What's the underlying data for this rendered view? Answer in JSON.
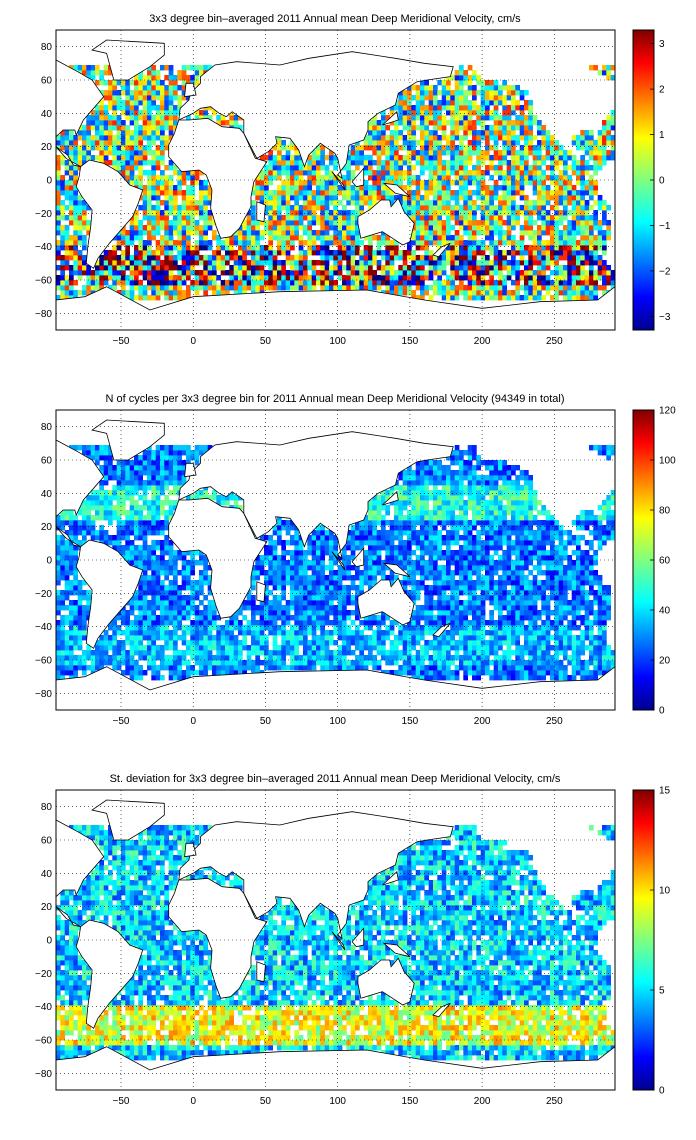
{
  "figure": {
    "panels": [
      {
        "id": "mean-velocity",
        "title": "3x3 degree bin–averaged 2011 Annual mean Deep Meridional Velocity, cm/s",
        "colorbar_ticks": [
          "3",
          "2",
          "1",
          "0",
          "−1",
          "−2",
          "−3"
        ]
      },
      {
        "id": "cycle-count",
        "title": "N of cycles per 3x3 degree bin for 2011 Annual mean Deep Meridional Velocity (94349 in total)",
        "colorbar_ticks": [
          "120",
          "100",
          "80",
          "60",
          "40",
          "20",
          "0"
        ]
      },
      {
        "id": "std-deviation",
        "title": "St. deviation for 3x3 degree bin–averaged 2011 Annual mean Deep Meridional Velocity, cm/s",
        "colorbar_ticks": [
          "15",
          "10",
          "5",
          "0"
        ]
      }
    ],
    "colormap": "jet"
  },
  "chart_data": [
    {
      "type": "heatmap",
      "title": "3x3 degree bin–averaged 2011 Annual mean Deep Meridional Velocity, cm/s",
      "xlabel": "",
      "ylabel": "",
      "xlim": [
        -95,
        292
      ],
      "ylim": [
        -90,
        90
      ],
      "x_ticks": [
        -50,
        0,
        50,
        100,
        150,
        200,
        250
      ],
      "y_ticks": [
        80,
        60,
        40,
        20,
        0,
        -20,
        -40,
        -60,
        -80
      ],
      "colorbar": {
        "min": -3.3,
        "max": 3.3,
        "ticks": [
          3,
          2,
          1,
          0,
          -1,
          -2,
          -3
        ]
      },
      "bin_size_deg": 3,
      "grid": "dotted",
      "colormap": "jet"
    },
    {
      "type": "heatmap",
      "title": "N of cycles per 3x3 degree bin for 2011 Annual mean Deep Meridional Velocity (94349 in total)",
      "xlabel": "",
      "ylabel": "",
      "xlim": [
        -95,
        292
      ],
      "ylim": [
        -90,
        90
      ],
      "x_ticks": [
        -50,
        0,
        50,
        100,
        150,
        200,
        250
      ],
      "y_ticks": [
        80,
        60,
        40,
        20,
        0,
        -20,
        -40,
        -60,
        -80
      ],
      "colorbar": {
        "min": 0,
        "max": 120,
        "ticks": [
          120,
          100,
          80,
          60,
          40,
          20,
          0
        ]
      },
      "bin_size_deg": 3,
      "grid": "dotted",
      "colormap": "jet"
    },
    {
      "type": "heatmap",
      "title": "St. deviation for 3x3 degree bin–averaged 2011 Annual mean Deep Meridional Velocity, cm/s",
      "xlabel": "",
      "ylabel": "",
      "xlim": [
        -95,
        292
      ],
      "ylim": [
        -90,
        90
      ],
      "x_ticks": [
        -50,
        0,
        50,
        100,
        150,
        200,
        250
      ],
      "y_ticks": [
        80,
        60,
        40,
        20,
        0,
        -20,
        -40,
        -60,
        -80
      ],
      "colorbar": {
        "min": 0,
        "max": 15,
        "ticks": [
          15,
          10,
          5,
          0
        ]
      },
      "bin_size_deg": 3,
      "grid": "dotted",
      "colormap": "jet"
    }
  ]
}
